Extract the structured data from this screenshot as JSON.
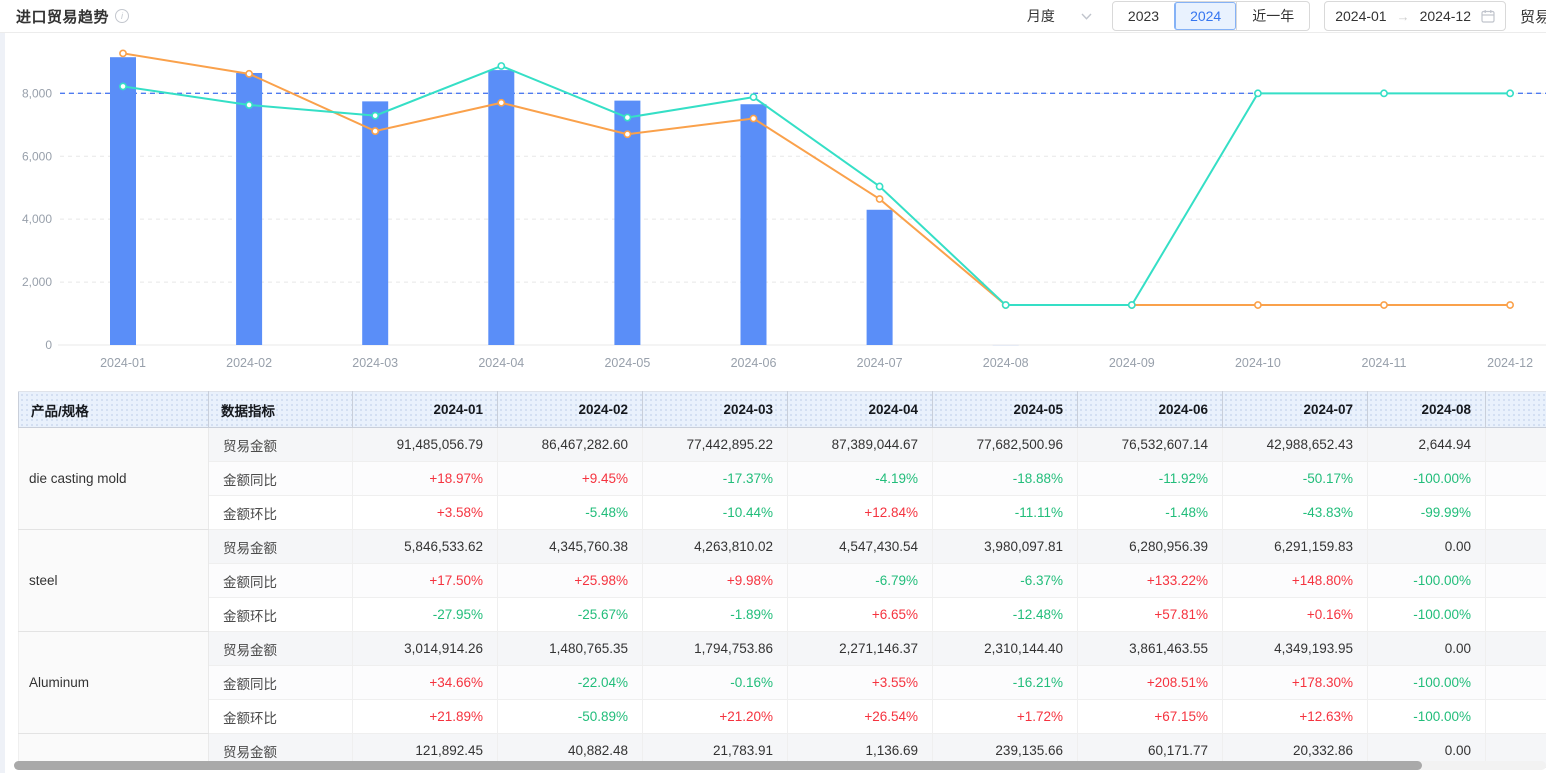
{
  "header": {
    "title": "进口贸易趋势",
    "info_icon": "i",
    "period_select": {
      "value": "月度",
      "icon": "chevron-down-icon"
    },
    "year_buttons": [
      "2023",
      "2024",
      "近一年"
    ],
    "active_year": "2024",
    "date_range": {
      "start": "2024-01",
      "arrow": "→",
      "end": "2024-12",
      "icon": "calendar-icon"
    },
    "partial_label": "贸易"
  },
  "chart_data": {
    "type": "combo",
    "x": [
      "2024-01",
      "2024-02",
      "2024-03",
      "2024-04",
      "2024-05",
      "2024-06",
      "2024-07",
      "2024-08",
      "2024-09",
      "2024-10",
      "2024-11",
      "2024-12"
    ],
    "ylim": [
      0,
      9600
    ],
    "yticks": [
      0,
      2000,
      4000,
      6000,
      8000
    ],
    "grid": true,
    "legend": "none",
    "markline_value": 8000,
    "markline_color": "#4e7bf0",
    "series": [
      {
        "name": "trade-amount-bars",
        "type": "bar",
        "color": "#5a8ef8",
        "values": [
          9148.5,
          8646.7,
          7744.3,
          8738.9,
          7768.3,
          7653.3,
          4298.9,
          0.26,
          null,
          null,
          null,
          null
        ]
      },
      {
        "name": "line-orange",
        "type": "line",
        "color": "#faa14b",
        "values": [
          9270,
          8620,
          6800,
          7700,
          6700,
          7200,
          4640,
          1270,
          1270,
          1270,
          1270,
          1270
        ]
      },
      {
        "name": "line-teal",
        "type": "line",
        "color": "#35dfc6",
        "values": [
          8220,
          7630,
          7290,
          8870,
          7230,
          7880,
          5040,
          1270,
          1270,
          8000,
          8000,
          8000
        ]
      }
    ]
  },
  "table": {
    "columns": [
      "产品/规格",
      "数据指标",
      "2024-01",
      "2024-02",
      "2024-03",
      "2024-04",
      "2024-05",
      "2024-06",
      "2024-07",
      "2024-08",
      ""
    ],
    "products": [
      {
        "name": "die casting mold",
        "rows": [
          {
            "metric": "贸易金额",
            "values": [
              "91,485,056.79",
              "86,467,282.60",
              "77,442,895.22",
              "87,389,044.67",
              "77,682,500.96",
              "76,532,607.14",
              "42,988,652.43",
              "2,644.94"
            ]
          },
          {
            "metric": "金额同比",
            "values": [
              "+18.97%",
              "+9.45%",
              "-17.37%",
              "-4.19%",
              "-18.88%",
              "-11.92%",
              "-50.17%",
              "-100.00%"
            ]
          },
          {
            "metric": "金额环比",
            "values": [
              "+3.58%",
              "-5.48%",
              "-10.44%",
              "+12.84%",
              "-11.11%",
              "-1.48%",
              "-43.83%",
              "-99.99%"
            ]
          }
        ]
      },
      {
        "name": "steel",
        "rows": [
          {
            "metric": "贸易金额",
            "values": [
              "5,846,533.62",
              "4,345,760.38",
              "4,263,810.02",
              "4,547,430.54",
              "3,980,097.81",
              "6,280,956.39",
              "6,291,159.83",
              "0.00"
            ]
          },
          {
            "metric": "金额同比",
            "values": [
              "+17.50%",
              "+25.98%",
              "+9.98%",
              "-6.79%",
              "-6.37%",
              "+133.22%",
              "+148.80%",
              "-100.00%"
            ]
          },
          {
            "metric": "金额环比",
            "values": [
              "-27.95%",
              "-25.67%",
              "-1.89%",
              "+6.65%",
              "-12.48%",
              "+57.81%",
              "+0.16%",
              "-100.00%"
            ]
          }
        ]
      },
      {
        "name": "Aluminum",
        "rows": [
          {
            "metric": "贸易金额",
            "values": [
              "3,014,914.26",
              "1,480,765.35",
              "1,794,753.86",
              "2,271,146.37",
              "2,310,144.40",
              "3,861,463.55",
              "4,349,193.95",
              "0.00"
            ]
          },
          {
            "metric": "金额同比",
            "values": [
              "+34.66%",
              "-22.04%",
              "-0.16%",
              "+3.55%",
              "-16.21%",
              "+208.51%",
              "+178.30%",
              "-100.00%"
            ]
          },
          {
            "metric": "金额环比",
            "values": [
              "+21.89%",
              "-50.89%",
              "+21.20%",
              "+26.54%",
              "+1.72%",
              "+67.15%",
              "+12.63%",
              "-100.00%"
            ]
          }
        ]
      },
      {
        "name": "",
        "rows": [
          {
            "metric": "贸易金额",
            "values": [
              "121,892.45",
              "40,882.48",
              "21,783.91",
              "1,136.69",
              "239,135.66",
              "60,171.77",
              "20,332.86",
              "0.00"
            ]
          }
        ]
      }
    ]
  },
  "colors": {
    "bar": "#5a8ef8",
    "line_orange": "#faa14b",
    "line_teal": "#35dfc6",
    "markline": "#4e7bf0",
    "positive": "#f5333f",
    "negative": "#21bd7a",
    "header_bg": "#e9f1fc",
    "axis_label": "#98a0ab"
  }
}
